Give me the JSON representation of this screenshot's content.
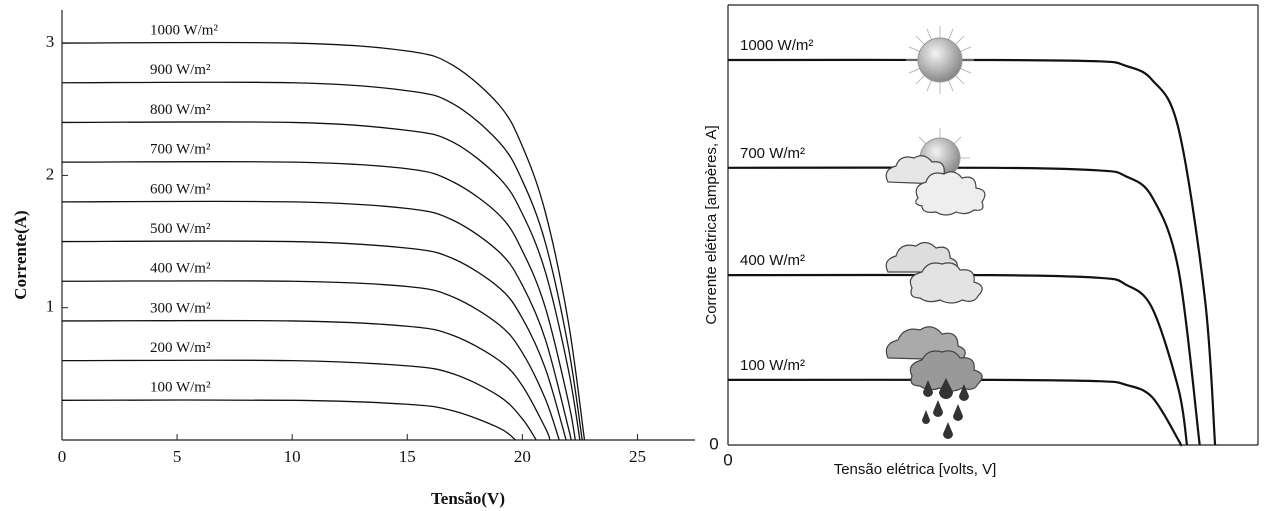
{
  "chart_data": [
    {
      "type": "line",
      "x_label": "Tensão(V)",
      "y_label": "Corrente(A)",
      "color": "#111111",
      "xlim": [
        0,
        27.5
      ],
      "ylim": [
        0,
        3.25
      ],
      "xticks": [
        0,
        5,
        10,
        15,
        20,
        25
      ],
      "yticks": [
        1,
        2,
        3
      ],
      "series": [
        {
          "name": "1000 W/m²",
          "x": [
            0,
            10,
            15,
            17,
            19,
            20,
            21,
            22,
            22.7
          ],
          "values": [
            3,
            3,
            2.94,
            2.83,
            2.53,
            2.22,
            1.72,
            0.89,
            0
          ]
        },
        {
          "name": "900 W/m²",
          "x": [
            0,
            10,
            15,
            17,
            19,
            20,
            21,
            22,
            22.6
          ],
          "values": [
            2.7,
            2.7,
            2.64,
            2.54,
            2.25,
            1.96,
            1.49,
            0.7,
            0
          ]
        },
        {
          "name": "800 W/m²",
          "x": [
            0,
            10,
            15,
            17,
            19,
            20,
            21,
            22,
            22.5
          ],
          "values": [
            2.4,
            2.4,
            2.34,
            2.25,
            1.98,
            1.71,
            1.27,
            0.53,
            0
          ]
        },
        {
          "name": "700 W/m²",
          "x": [
            0,
            10,
            15,
            17,
            19,
            20,
            21,
            22,
            22.3
          ],
          "values": [
            2.1,
            2.1,
            2.05,
            1.95,
            1.7,
            1.43,
            1.0,
            0.29,
            0
          ]
        },
        {
          "name": "600 W/m²",
          "x": [
            0,
            10,
            15,
            17,
            19,
            20,
            21,
            22,
            22.1
          ],
          "values": [
            1.8,
            1.8,
            1.75,
            1.66,
            1.42,
            1.17,
            0.76,
            0.09,
            0
          ]
        },
        {
          "name": "500 W/m²",
          "x": [
            0,
            10,
            15,
            17,
            19,
            20,
            21,
            21.9
          ],
          "values": [
            1.5,
            1.5,
            1.45,
            1.37,
            1.15,
            0.92,
            0.54,
            0
          ]
        },
        {
          "name": "400 W/m²",
          "x": [
            0,
            10,
            15,
            17,
            19,
            20,
            21,
            21.6
          ],
          "values": [
            1.2,
            1.2,
            1.16,
            1.08,
            0.87,
            0.66,
            0.31,
            0
          ]
        },
        {
          "name": "300 W/m²",
          "x": [
            0,
            10,
            15,
            17,
            19,
            20,
            21,
            21.2
          ],
          "values": [
            0.9,
            0.9,
            0.86,
            0.79,
            0.6,
            0.41,
            0.09,
            0
          ]
        },
        {
          "name": "200 W/m²",
          "x": [
            0,
            10,
            15,
            17,
            19,
            20,
            20.6
          ],
          "values": [
            0.6,
            0.6,
            0.56,
            0.5,
            0.33,
            0.16,
            0
          ]
        },
        {
          "name": "100 W/m²",
          "x": [
            0,
            10,
            15,
            17,
            19,
            19.7
          ],
          "values": [
            0.3,
            0.3,
            0.27,
            0.22,
            0.09,
            0
          ]
        }
      ]
    },
    {
      "type": "line",
      "x_label": "Tensão elétrica [volts, V]",
      "y_label": "Corrente elétrica [ampères, A]",
      "color": "#111111",
      "xlim": [
        0,
        10
      ],
      "ylim": [
        0,
        10
      ],
      "xticks": [
        0
      ],
      "yticks": [
        0
      ],
      "series": [
        {
          "name": "1000 W/m²",
          "x": [
            0,
            5,
            7,
            7.5,
            8,
            8.5,
            9,
            9.19
          ],
          "values": [
            8.75,
            8.75,
            8.72,
            8.62,
            8.3,
            7.19,
            3.31,
            0
          ]
        },
        {
          "name": "700 W/m²",
          "x": [
            0,
            5,
            7,
            7.5,
            8,
            8.5,
            8.9
          ],
          "values": [
            6.3,
            6.3,
            6.24,
            6.11,
            5.64,
            3.98,
            0
          ]
        },
        {
          "name": "400 W/m²",
          "x": [
            0,
            5,
            7,
            7.5,
            8,
            8.5,
            8.66
          ],
          "values": [
            3.86,
            3.86,
            3.8,
            3.65,
            3.12,
            1.27,
            0
          ]
        },
        {
          "name": "100 W/m²",
          "x": [
            0,
            5,
            7,
            7.5,
            8,
            8.5,
            8.53
          ],
          "values": [
            1.48,
            1.48,
            1.45,
            1.37,
            1.09,
            0.11,
            0
          ]
        }
      ]
    }
  ]
}
